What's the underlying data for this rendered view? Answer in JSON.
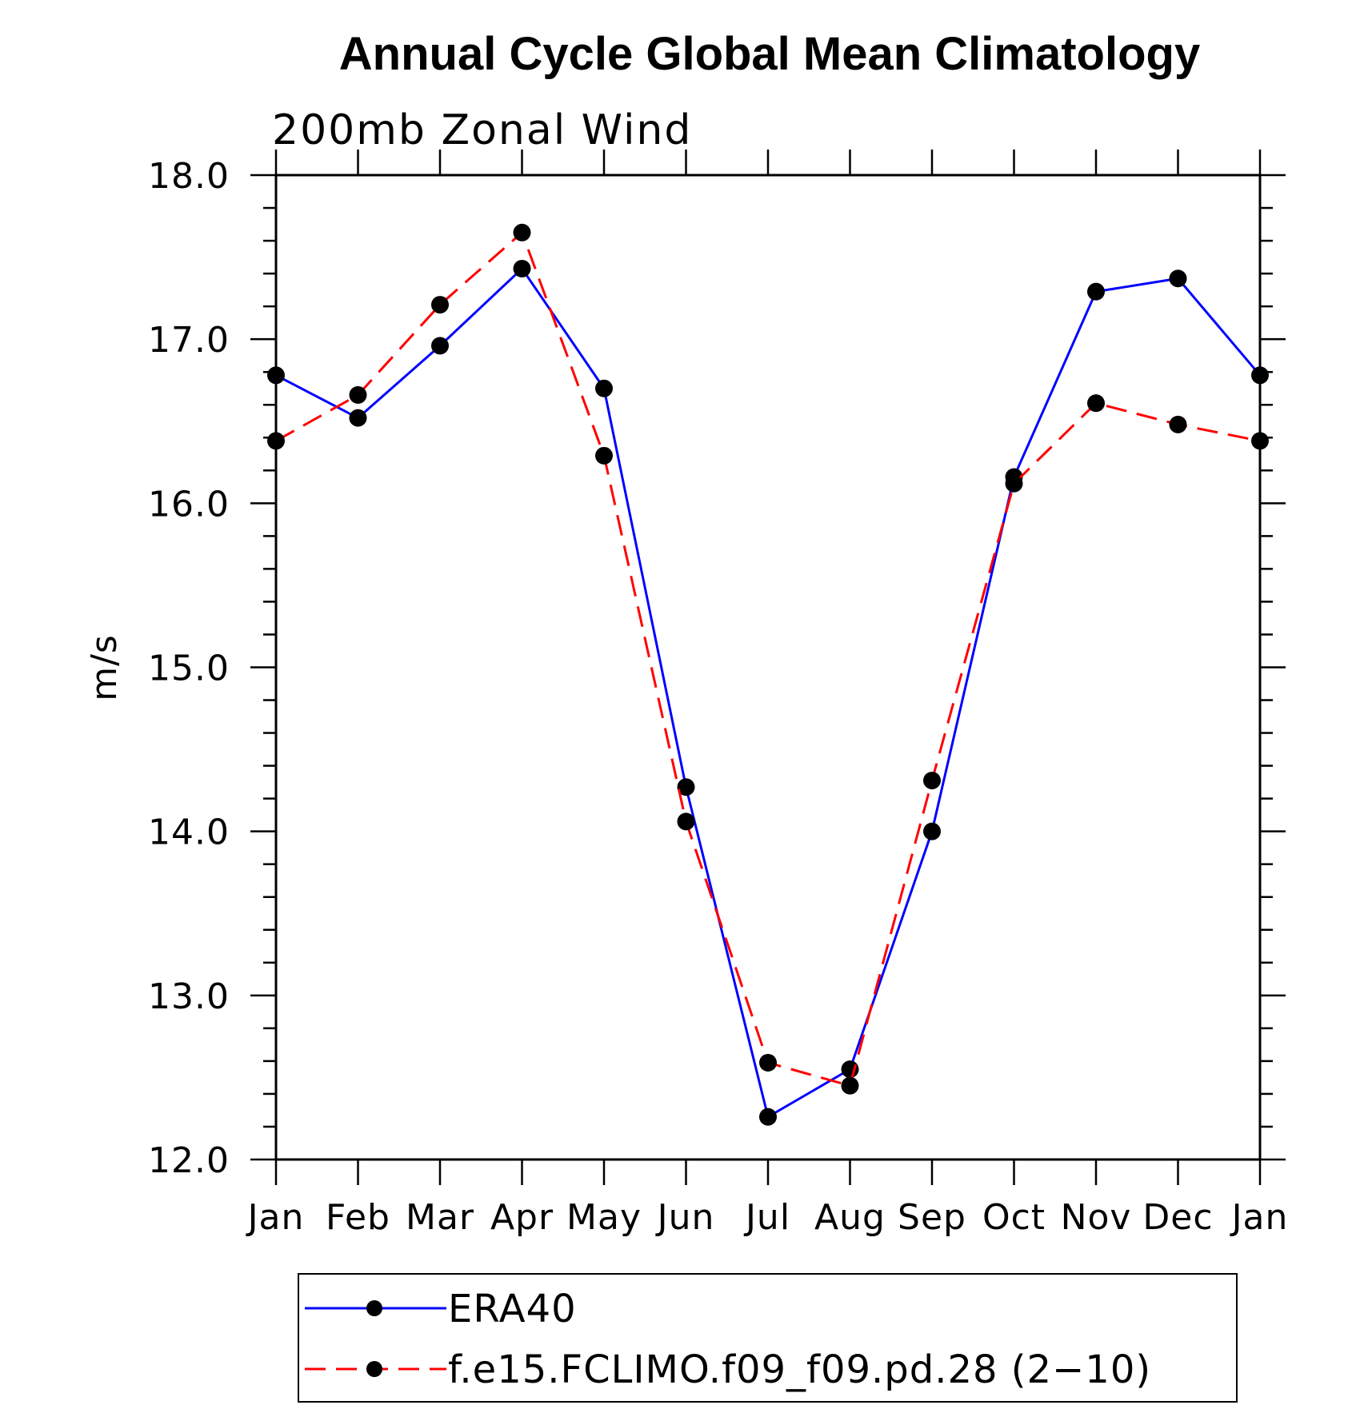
{
  "chart_data": {
    "type": "line",
    "title": "Annual Cycle Global Mean Climatology",
    "subtitle": "200mb Zonal Wind",
    "xlabel": "",
    "ylabel": "m/s",
    "categories": [
      "Jan",
      "Feb",
      "Mar",
      "Apr",
      "May",
      "Jun",
      "Jul",
      "Aug",
      "Sep",
      "Oct",
      "Nov",
      "Dec",
      "Jan"
    ],
    "ylim": [
      12.0,
      18.0
    ],
    "yticks": [
      "12.0",
      "13.0",
      "14.0",
      "15.0",
      "16.0",
      "17.0",
      "18.0"
    ],
    "grid": false,
    "legend_position": "bottom",
    "series": [
      {
        "name": "ERA40",
        "color": "#0000ff",
        "dash": "solid",
        "values": [
          16.78,
          16.52,
          16.96,
          17.43,
          16.7,
          14.27,
          12.26,
          12.55,
          14.0,
          16.16,
          17.29,
          17.37,
          16.78
        ]
      },
      {
        "name": "f.e15.FCLIMO.f09_f09.pd.28 (2−10)",
        "color": "#ff0000",
        "dash": "dashed",
        "values": [
          16.38,
          16.66,
          17.21,
          17.65,
          16.29,
          14.06,
          12.59,
          12.45,
          14.31,
          16.12,
          16.61,
          16.48,
          16.38
        ]
      }
    ]
  }
}
